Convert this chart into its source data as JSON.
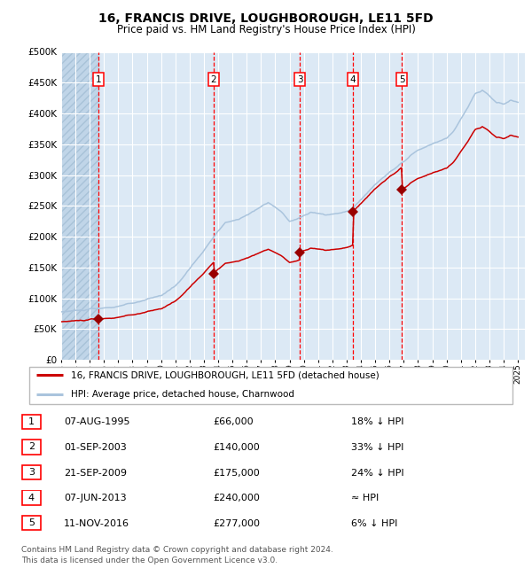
{
  "title": "16, FRANCIS DRIVE, LOUGHBOROUGH, LE11 5FD",
  "subtitle": "Price paid vs. HM Land Registry's House Price Index (HPI)",
  "legend_line1": "16, FRANCIS DRIVE, LOUGHBOROUGH, LE11 5FD (detached house)",
  "legend_line2": "HPI: Average price, detached house, Charnwood",
  "footer_line1": "Contains HM Land Registry data © Crown copyright and database right 2024.",
  "footer_line2": "This data is licensed under the Open Government Licence v3.0.",
  "ylim": [
    0,
    500000
  ],
  "yticks": [
    0,
    50000,
    100000,
    150000,
    200000,
    250000,
    300000,
    350000,
    400000,
    450000,
    500000
  ],
  "ytick_labels": [
    "£0",
    "£50K",
    "£100K",
    "£150K",
    "£200K",
    "£250K",
    "£300K",
    "£350K",
    "£400K",
    "£450K",
    "£500K"
  ],
  "hpi_color": "#aac4dd",
  "price_color": "#cc0000",
  "marker_color": "#990000",
  "bg_color": "#dce9f5",
  "grid_color": "#ffffff",
  "hatch_color": "#c0d5e8",
  "transactions": [
    {
      "num": 1,
      "date_str": "07-AUG-1995",
      "date_x": 1995.59,
      "price": 66000,
      "pct": "18% ↓ HPI"
    },
    {
      "num": 2,
      "date_str": "01-SEP-2003",
      "date_x": 2003.67,
      "price": 140000,
      "pct": "33% ↓ HPI"
    },
    {
      "num": 3,
      "date_str": "21-SEP-2009",
      "date_x": 2009.72,
      "price": 175000,
      "pct": "24% ↓ HPI"
    },
    {
      "num": 4,
      "date_str": "07-JUN-2013",
      "date_x": 2013.43,
      "price": 240000,
      "pct": "≈ HPI"
    },
    {
      "num": 5,
      "date_str": "11-NOV-2016",
      "date_x": 2016.86,
      "price": 277000,
      "pct": "6% ↓ HPI"
    }
  ],
  "xlim_start": 1993.0,
  "xlim_end": 2025.5,
  "xticks": [
    1993,
    1994,
    1995,
    1996,
    1997,
    1998,
    1999,
    2000,
    2001,
    2002,
    2003,
    2004,
    2005,
    2006,
    2007,
    2008,
    2009,
    2010,
    2011,
    2012,
    2013,
    2014,
    2015,
    2016,
    2017,
    2018,
    2019,
    2020,
    2021,
    2022,
    2023,
    2024,
    2025
  ]
}
